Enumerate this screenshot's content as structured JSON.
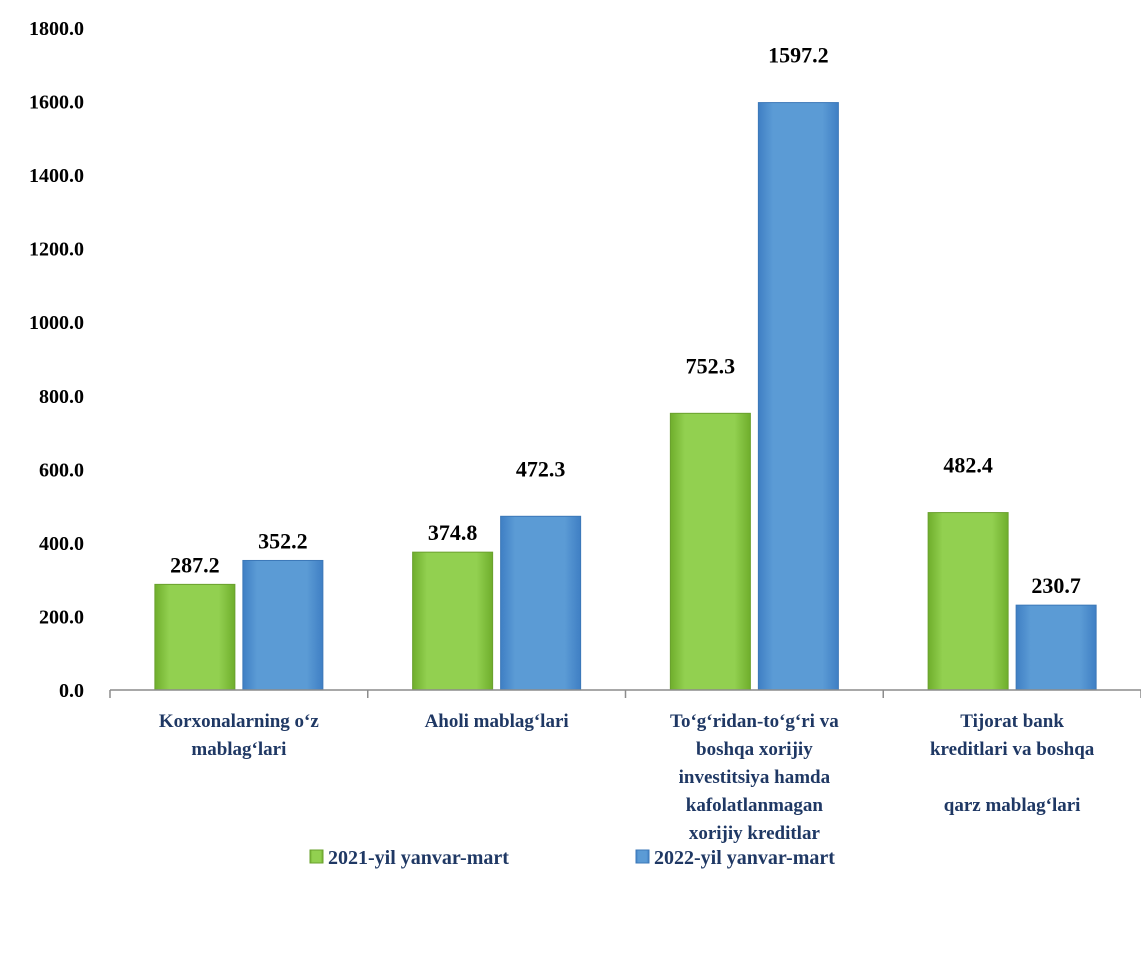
{
  "chart_data": {
    "type": "bar",
    "categories": [
      [
        "Korxonalarning o‘z",
        "mablag‘lari"
      ],
      [
        "Aholi mablag‘lari"
      ],
      [
        "To‘g‘ridan-to‘g‘ri va",
        "boshqa xorijiy",
        "investitsiya hamda",
        "kafolatlanmagan",
        "xorijiy kreditlar"
      ],
      [
        "Tijorat bank",
        "kreditlari va boshqa",
        "",
        "qarz mablag‘lari"
      ]
    ],
    "series": [
      {
        "name": "2021-yil yanvar-mart",
        "values": [
          287.2,
          374.8,
          752.3,
          482.4
        ],
        "color": "#92d050"
      },
      {
        "name": "2022-yil yanvar-mart",
        "values": [
          352.2,
          472.3,
          1597.2,
          230.7
        ],
        "color": "#5b9bd5"
      }
    ],
    "value_labels": [
      [
        "287.2",
        "374.8",
        "752.3",
        "482.4"
      ],
      [
        "352.2",
        "472.3",
        "1597.2",
        "230.7"
      ]
    ],
    "y_ticks": [
      "0.0",
      "200.0",
      "400.0",
      "600.0",
      "800.0",
      "1000.0",
      "1200.0",
      "1400.0",
      "1600.0",
      "1800.0"
    ],
    "ylim": [
      0,
      1800
    ],
    "grid": false,
    "legend_position": "bottom"
  }
}
